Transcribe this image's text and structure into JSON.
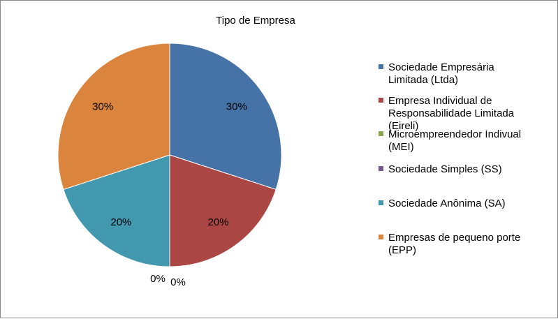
{
  "chart_data": {
    "type": "pie",
    "title": "Tipo de Empresa",
    "legend_position": "right",
    "slices": [
      {
        "label": "Sociedade Empresária Limitada (Ltda)",
        "label_lines": [
          "Sociedade Empresária",
          "Limitada (Ltda)"
        ],
        "value": 30,
        "display": "30%",
        "color": "#4572A7"
      },
      {
        "label": "Empresa Individual de Responsabilidade Limitada (Eireli)",
        "label_lines": [
          "Empresa Individual de",
          "Responsabilidade Limitada",
          "(Eireli)"
        ],
        "value": 20,
        "display": "20%",
        "color": "#AA4643"
      },
      {
        "label": "Microempreendedor Indivual (MEI)",
        "label_lines": [
          "Microempreendedor Indivual",
          "(MEI)"
        ],
        "value": 0,
        "display": "0%",
        "color": "#89A54E"
      },
      {
        "label": "Sociedade Simples (SS)",
        "label_lines": [
          "Sociedade Simples (SS)"
        ],
        "value": 0,
        "display": "0%",
        "color": "#71588F"
      },
      {
        "label": "Sociedade Anônima (SA)",
        "label_lines": [
          "Sociedade Anônima (SA)"
        ],
        "value": 20,
        "display": "20%",
        "color": "#4198AF"
      },
      {
        "label": "Empresas de pequeno porte (EPP)",
        "label_lines": [
          "Empresas de pequeno porte",
          "(EPP)"
        ],
        "value": 30,
        "display": "30%",
        "color": "#DB843D"
      }
    ]
  }
}
